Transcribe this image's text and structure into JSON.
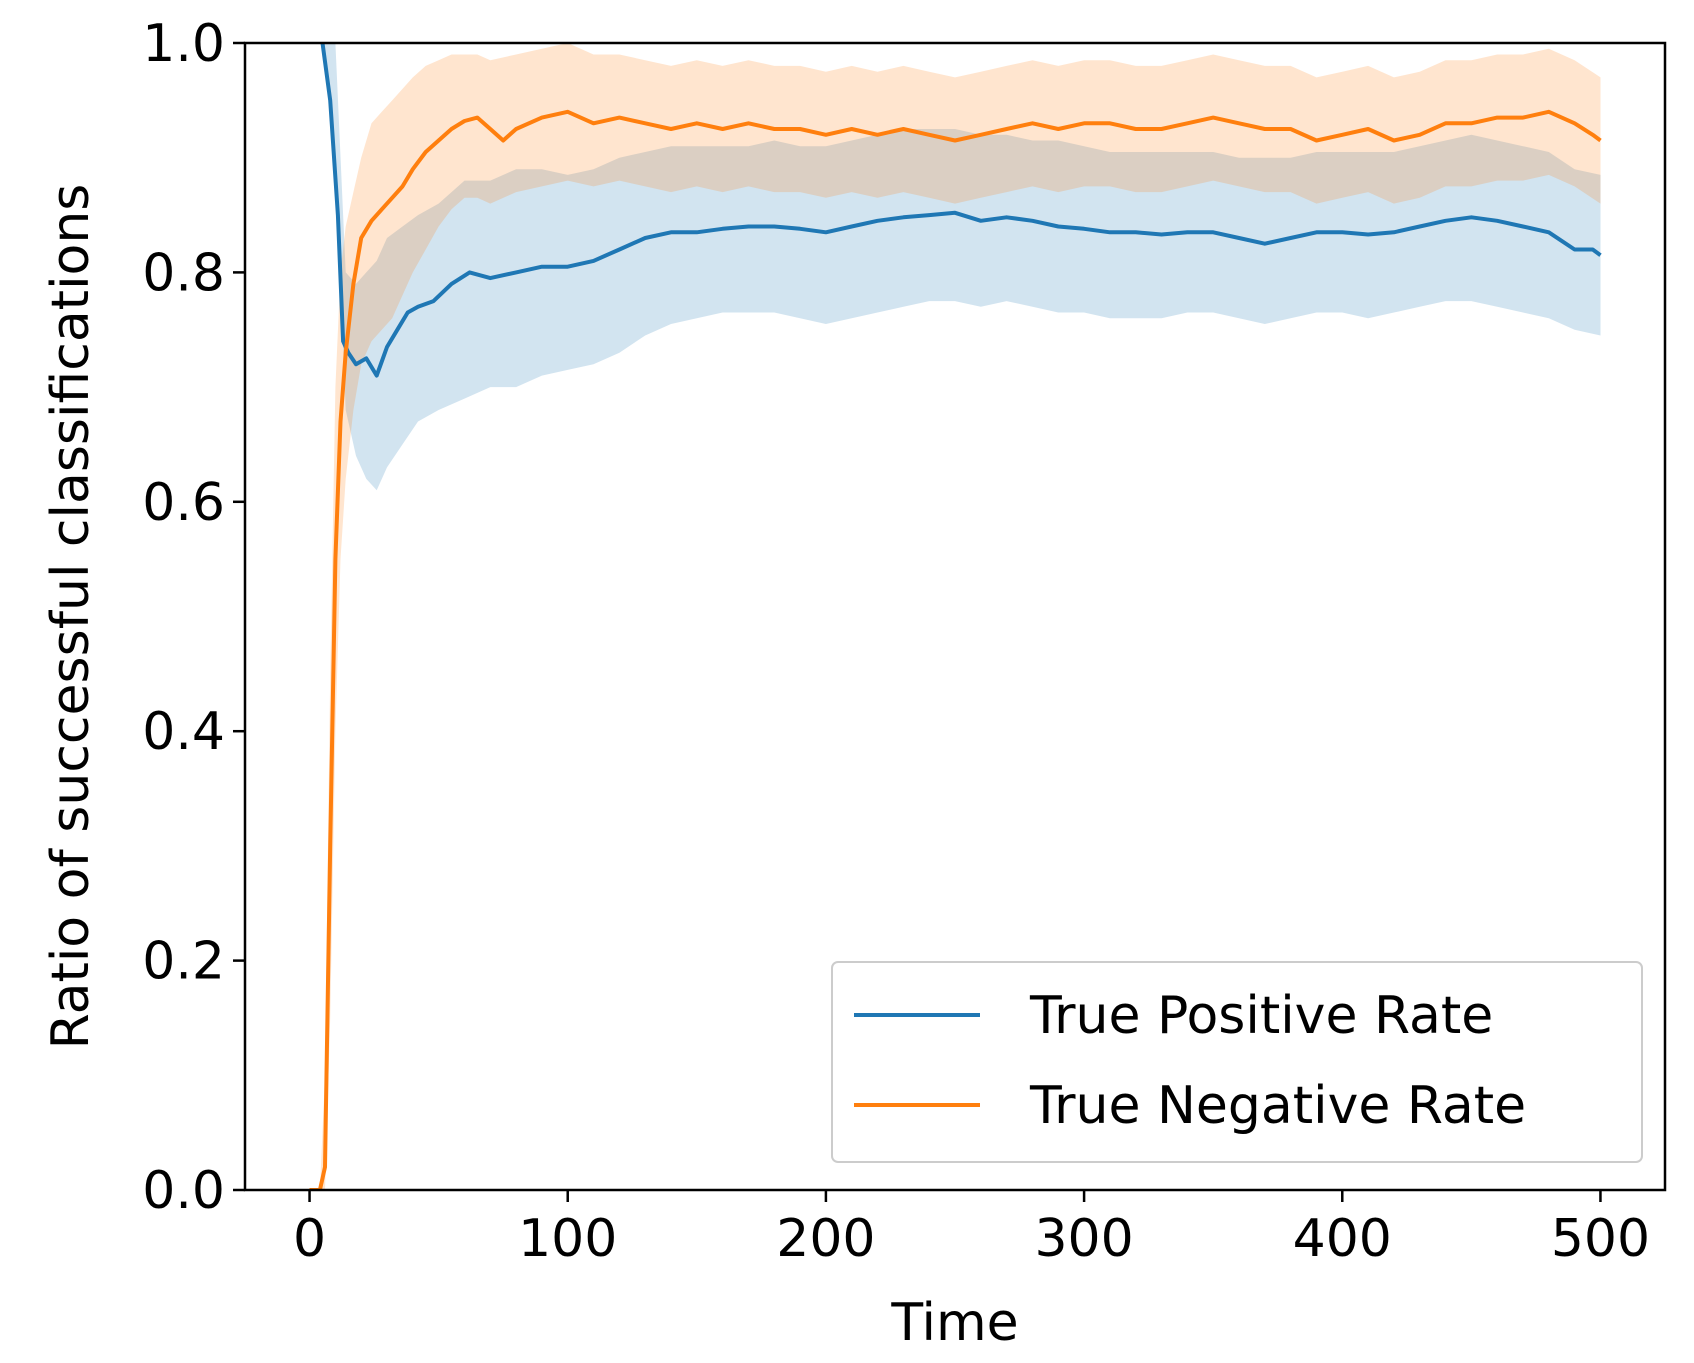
{
  "chart_data": {
    "type": "line",
    "title": "",
    "xlabel": "Time",
    "ylabel": "Ratio of successful classifications",
    "xlim": [
      -25,
      525
    ],
    "ylim": [
      0.0,
      1.0
    ],
    "xticks": [
      0,
      100,
      200,
      300,
      400,
      500
    ],
    "xtick_labels": [
      "0",
      "100",
      "200",
      "300",
      "400",
      "500"
    ],
    "yticks": [
      0.0,
      0.2,
      0.4,
      0.6,
      0.8,
      1.0
    ],
    "ytick_labels": [
      "0.0",
      "0.2",
      "0.4",
      "0.6",
      "0.8",
      "1.0"
    ],
    "grid": false,
    "legend_position": "bottom-right",
    "series": [
      {
        "name": "True Positive Rate",
        "color": "#1f77b4",
        "band_color": "#1f77b4",
        "points": [
          [
            5,
            1.0
          ],
          [
            8,
            0.95
          ],
          [
            11,
            0.85
          ],
          [
            13,
            0.74
          ],
          [
            15,
            0.73
          ],
          [
            18,
            0.72
          ],
          [
            22,
            0.725
          ],
          [
            26,
            0.71
          ],
          [
            30,
            0.735
          ],
          [
            34,
            0.75
          ],
          [
            38,
            0.765
          ],
          [
            42,
            0.77
          ],
          [
            48,
            0.775
          ],
          [
            55,
            0.79
          ],
          [
            62,
            0.8
          ],
          [
            70,
            0.795
          ],
          [
            80,
            0.8
          ],
          [
            90,
            0.805
          ],
          [
            100,
            0.805
          ],
          [
            110,
            0.81
          ],
          [
            120,
            0.82
          ],
          [
            130,
            0.83
          ],
          [
            140,
            0.835
          ],
          [
            150,
            0.835
          ],
          [
            160,
            0.838
          ],
          [
            170,
            0.84
          ],
          [
            180,
            0.84
          ],
          [
            190,
            0.838
          ],
          [
            200,
            0.835
          ],
          [
            210,
            0.84
          ],
          [
            220,
            0.845
          ],
          [
            230,
            0.848
          ],
          [
            240,
            0.85
          ],
          [
            250,
            0.852
          ],
          [
            260,
            0.845
          ],
          [
            270,
            0.848
          ],
          [
            280,
            0.845
          ],
          [
            290,
            0.84
          ],
          [
            300,
            0.838
          ],
          [
            310,
            0.835
          ],
          [
            320,
            0.835
          ],
          [
            330,
            0.833
          ],
          [
            340,
            0.835
          ],
          [
            350,
            0.835
          ],
          [
            360,
            0.83
          ],
          [
            370,
            0.825
          ],
          [
            380,
            0.83
          ],
          [
            390,
            0.835
          ],
          [
            400,
            0.835
          ],
          [
            410,
            0.833
          ],
          [
            420,
            0.835
          ],
          [
            430,
            0.84
          ],
          [
            440,
            0.845
          ],
          [
            450,
            0.848
          ],
          [
            460,
            0.845
          ],
          [
            470,
            0.84
          ],
          [
            480,
            0.835
          ],
          [
            490,
            0.82
          ],
          [
            497,
            0.82
          ],
          [
            500,
            0.815
          ]
        ],
        "band": [
          [
            5,
            1.0,
            1.0
          ],
          [
            10,
            0.9,
            1.0
          ],
          [
            14,
            0.68,
            0.8
          ],
          [
            18,
            0.64,
            0.79
          ],
          [
            22,
            0.62,
            0.8
          ],
          [
            26,
            0.61,
            0.81
          ],
          [
            30,
            0.63,
            0.83
          ],
          [
            36,
            0.65,
            0.84
          ],
          [
            42,
            0.67,
            0.85
          ],
          [
            50,
            0.68,
            0.86
          ],
          [
            60,
            0.69,
            0.88
          ],
          [
            70,
            0.7,
            0.88
          ],
          [
            80,
            0.7,
            0.89
          ],
          [
            90,
            0.71,
            0.89
          ],
          [
            100,
            0.715,
            0.885
          ],
          [
            110,
            0.72,
            0.89
          ],
          [
            120,
            0.73,
            0.9
          ],
          [
            130,
            0.745,
            0.905
          ],
          [
            140,
            0.755,
            0.91
          ],
          [
            150,
            0.76,
            0.91
          ],
          [
            160,
            0.765,
            0.91
          ],
          [
            170,
            0.765,
            0.91
          ],
          [
            180,
            0.765,
            0.915
          ],
          [
            190,
            0.76,
            0.91
          ],
          [
            200,
            0.755,
            0.91
          ],
          [
            210,
            0.76,
            0.915
          ],
          [
            220,
            0.765,
            0.92
          ],
          [
            230,
            0.77,
            0.925
          ],
          [
            240,
            0.775,
            0.925
          ],
          [
            250,
            0.775,
            0.925
          ],
          [
            260,
            0.77,
            0.92
          ],
          [
            270,
            0.775,
            0.92
          ],
          [
            280,
            0.77,
            0.915
          ],
          [
            290,
            0.765,
            0.915
          ],
          [
            300,
            0.765,
            0.91
          ],
          [
            310,
            0.76,
            0.905
          ],
          [
            320,
            0.76,
            0.905
          ],
          [
            330,
            0.76,
            0.905
          ],
          [
            340,
            0.765,
            0.905
          ],
          [
            350,
            0.765,
            0.905
          ],
          [
            360,
            0.76,
            0.9
          ],
          [
            370,
            0.755,
            0.9
          ],
          [
            380,
            0.76,
            0.9
          ],
          [
            390,
            0.765,
            0.905
          ],
          [
            400,
            0.765,
            0.905
          ],
          [
            410,
            0.76,
            0.905
          ],
          [
            420,
            0.765,
            0.905
          ],
          [
            430,
            0.77,
            0.91
          ],
          [
            440,
            0.775,
            0.915
          ],
          [
            450,
            0.775,
            0.92
          ],
          [
            460,
            0.77,
            0.915
          ],
          [
            470,
            0.765,
            0.91
          ],
          [
            480,
            0.76,
            0.905
          ],
          [
            490,
            0.75,
            0.89
          ],
          [
            500,
            0.745,
            0.885
          ]
        ]
      },
      {
        "name": "True Negative Rate",
        "color": "#ff7f0e",
        "band_color": "#ff7f0e",
        "points": [
          [
            0,
            0.0
          ],
          [
            4,
            0.0
          ],
          [
            6,
            0.02
          ],
          [
            8,
            0.3
          ],
          [
            10,
            0.55
          ],
          [
            12,
            0.67
          ],
          [
            14,
            0.73
          ],
          [
            17,
            0.79
          ],
          [
            20,
            0.83
          ],
          [
            24,
            0.845
          ],
          [
            28,
            0.855
          ],
          [
            32,
            0.865
          ],
          [
            36,
            0.875
          ],
          [
            40,
            0.89
          ],
          [
            45,
            0.905
          ],
          [
            50,
            0.915
          ],
          [
            55,
            0.925
          ],
          [
            60,
            0.932
          ],
          [
            65,
            0.935
          ],
          [
            70,
            0.925
          ],
          [
            75,
            0.915
          ],
          [
            80,
            0.925
          ],
          [
            90,
            0.935
          ],
          [
            100,
            0.94
          ],
          [
            110,
            0.93
          ],
          [
            120,
            0.935
          ],
          [
            130,
            0.93
          ],
          [
            140,
            0.925
          ],
          [
            150,
            0.93
          ],
          [
            160,
            0.925
          ],
          [
            170,
            0.93
          ],
          [
            180,
            0.925
          ],
          [
            190,
            0.925
          ],
          [
            200,
            0.92
          ],
          [
            210,
            0.925
          ],
          [
            220,
            0.92
          ],
          [
            230,
            0.925
          ],
          [
            240,
            0.92
          ],
          [
            250,
            0.915
          ],
          [
            260,
            0.92
          ],
          [
            270,
            0.925
          ],
          [
            280,
            0.93
          ],
          [
            290,
            0.925
          ],
          [
            300,
            0.93
          ],
          [
            310,
            0.93
          ],
          [
            320,
            0.925
          ],
          [
            330,
            0.925
          ],
          [
            340,
            0.93
          ],
          [
            350,
            0.935
          ],
          [
            360,
            0.93
          ],
          [
            370,
            0.925
          ],
          [
            380,
            0.925
          ],
          [
            390,
            0.915
          ],
          [
            400,
            0.92
          ],
          [
            410,
            0.925
          ],
          [
            420,
            0.915
          ],
          [
            430,
            0.92
          ],
          [
            440,
            0.93
          ],
          [
            450,
            0.93
          ],
          [
            460,
            0.935
          ],
          [
            470,
            0.935
          ],
          [
            480,
            0.94
          ],
          [
            490,
            0.93
          ],
          [
            497,
            0.92
          ],
          [
            500,
            0.915
          ]
        ],
        "band": [
          [
            0,
            0.0,
            0.0
          ],
          [
            4,
            0.0,
            0.0
          ],
          [
            6,
            0.0,
            0.1
          ],
          [
            8,
            0.15,
            0.45
          ],
          [
            10,
            0.4,
            0.7
          ],
          [
            12,
            0.55,
            0.8
          ],
          [
            14,
            0.62,
            0.84
          ],
          [
            17,
            0.68,
            0.87
          ],
          [
            20,
            0.72,
            0.9
          ],
          [
            24,
            0.74,
            0.93
          ],
          [
            28,
            0.75,
            0.94
          ],
          [
            32,
            0.76,
            0.95
          ],
          [
            36,
            0.78,
            0.96
          ],
          [
            40,
            0.8,
            0.97
          ],
          [
            45,
            0.82,
            0.98
          ],
          [
            50,
            0.84,
            0.985
          ],
          [
            55,
            0.855,
            0.99
          ],
          [
            60,
            0.865,
            0.99
          ],
          [
            65,
            0.865,
            0.99
          ],
          [
            70,
            0.86,
            0.985
          ],
          [
            80,
            0.87,
            0.99
          ],
          [
            90,
            0.875,
            0.995
          ],
          [
            100,
            0.88,
            1.0
          ],
          [
            110,
            0.875,
            0.99
          ],
          [
            120,
            0.88,
            0.99
          ],
          [
            130,
            0.875,
            0.985
          ],
          [
            140,
            0.87,
            0.98
          ],
          [
            150,
            0.875,
            0.985
          ],
          [
            160,
            0.87,
            0.98
          ],
          [
            170,
            0.875,
            0.985
          ],
          [
            180,
            0.87,
            0.98
          ],
          [
            190,
            0.87,
            0.98
          ],
          [
            200,
            0.865,
            0.975
          ],
          [
            210,
            0.87,
            0.98
          ],
          [
            220,
            0.865,
            0.975
          ],
          [
            230,
            0.87,
            0.98
          ],
          [
            240,
            0.865,
            0.975
          ],
          [
            250,
            0.86,
            0.97
          ],
          [
            260,
            0.865,
            0.975
          ],
          [
            270,
            0.87,
            0.98
          ],
          [
            280,
            0.875,
            0.985
          ],
          [
            290,
            0.87,
            0.98
          ],
          [
            300,
            0.875,
            0.985
          ],
          [
            310,
            0.875,
            0.985
          ],
          [
            320,
            0.87,
            0.98
          ],
          [
            330,
            0.87,
            0.98
          ],
          [
            340,
            0.875,
            0.985
          ],
          [
            350,
            0.88,
            0.99
          ],
          [
            360,
            0.875,
            0.985
          ],
          [
            370,
            0.87,
            0.98
          ],
          [
            380,
            0.87,
            0.98
          ],
          [
            390,
            0.86,
            0.97
          ],
          [
            400,
            0.865,
            0.975
          ],
          [
            410,
            0.87,
            0.98
          ],
          [
            420,
            0.86,
            0.97
          ],
          [
            430,
            0.865,
            0.975
          ],
          [
            440,
            0.875,
            0.985
          ],
          [
            450,
            0.875,
            0.985
          ],
          [
            460,
            0.88,
            0.99
          ],
          [
            470,
            0.88,
            0.99
          ],
          [
            480,
            0.885,
            0.995
          ],
          [
            490,
            0.875,
            0.985
          ],
          [
            500,
            0.86,
            0.97
          ]
        ]
      }
    ]
  }
}
